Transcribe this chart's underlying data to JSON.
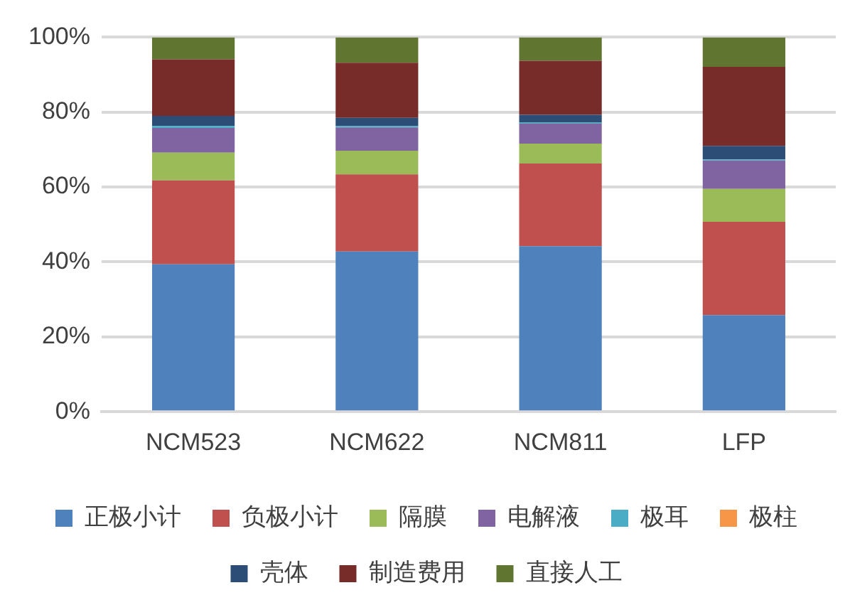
{
  "chart_data": {
    "type": "bar",
    "stacked": true,
    "categories": [
      "NCM523",
      "NCM622",
      "NCM811",
      "LFP"
    ],
    "series": [
      {
        "name": "正极小计",
        "color": "#4f81bd",
        "values": [
          39.4,
          42.8,
          44.2,
          25.8
        ]
      },
      {
        "name": "负极小计",
        "color": "#c0504d",
        "values": [
          22.4,
          20.6,
          22.1,
          24.9
        ]
      },
      {
        "name": "隔膜",
        "color": "#9bbb59",
        "values": [
          7.4,
          6.3,
          5.3,
          8.8
        ]
      },
      {
        "name": "电解液",
        "color": "#8064a2",
        "values": [
          6.6,
          6.2,
          5.3,
          7.6
        ]
      },
      {
        "name": "极耳",
        "color": "#4bacc6",
        "values": [
          0.5,
          0.4,
          0.3,
          0.3
        ]
      },
      {
        "name": "极柱",
        "color": "#f79646",
        "values": [
          null,
          null,
          null,
          null
        ]
      },
      {
        "name": "壳体",
        "color": "#2c4d75",
        "values": [
          2.7,
          2.2,
          2.1,
          3.6
        ]
      },
      {
        "name": "制造费用",
        "color": "#772c2a",
        "values": [
          15.1,
          14.7,
          14.4,
          21.1
        ]
      },
      {
        "name": "直接人工",
        "color": "#5f7530",
        "values": [
          5.9,
          6.8,
          6.3,
          7.9
        ]
      }
    ],
    "ylim": [
      0,
      100
    ],
    "yticks": [
      {
        "value": 0,
        "label": "0%"
      },
      {
        "value": 20,
        "label": "20%"
      },
      {
        "value": 40,
        "label": "40%"
      },
      {
        "value": 60,
        "label": "60%"
      },
      {
        "value": 80,
        "label": "80%"
      },
      {
        "value": 100,
        "label": "100%"
      }
    ],
    "grid": "y",
    "legend": "bottom"
  }
}
